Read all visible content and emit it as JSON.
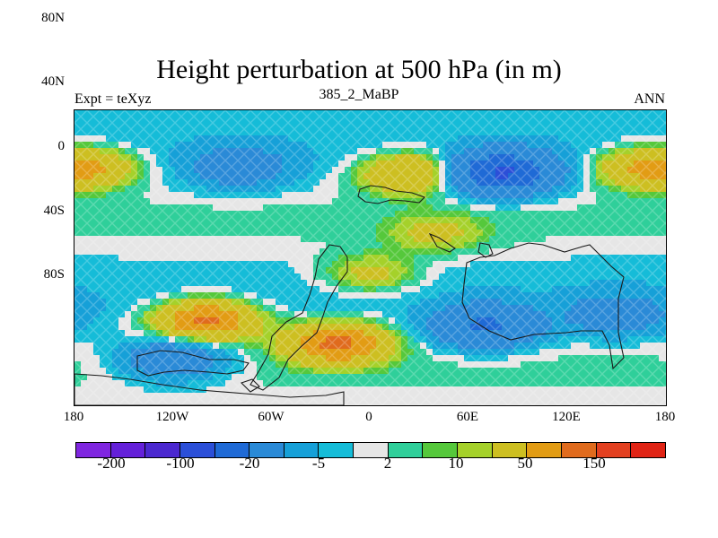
{
  "header": {
    "title": "Height perturbation at 500 hPa (in m)",
    "left_label": "Expt = teXyz",
    "center_label": "385_2_MaBP",
    "right_label": "ANN"
  },
  "axes": {
    "y_ticks": [
      "80N",
      "40N",
      "0",
      "40S",
      "80S"
    ],
    "x_ticks": [
      "180",
      "120W",
      "60W",
      "0",
      "60E",
      "120E",
      "180"
    ]
  },
  "colorbar": {
    "colors": [
      "#7f26e0",
      "#6420d9",
      "#4b28d0",
      "#2b4fd8",
      "#1f6ad6",
      "#2a8ad7",
      "#16a0d8",
      "#15bcd8",
      "#e6e6e6",
      "#2fcf9a",
      "#55c83b",
      "#a5d12a",
      "#cdbf21",
      "#e29c14",
      "#e06b1d",
      "#e34020",
      "#e02415"
    ],
    "labels": [
      "-200",
      "-100",
      "-20",
      "-5",
      "2",
      "10",
      "50",
      "150"
    ]
  },
  "chart_data": {
    "type": "heatmap",
    "title": "Height perturbation at 500 hPa (in m)",
    "subtitle": "385_2_MaBP",
    "xlabel": "",
    "ylabel": "",
    "xlim": [
      -180,
      180
    ],
    "ylim": [
      -90,
      90
    ],
    "x_tick_labels": [
      "180",
      "120W",
      "60W",
      "0",
      "60E",
      "120E",
      "180"
    ],
    "y_tick_labels": [
      "80N",
      "40N",
      "0",
      "40S",
      "80S"
    ],
    "levels": [
      -200,
      -100,
      -20,
      -5,
      2,
      10,
      50,
      150
    ],
    "base_value": -5,
    "features": [
      {
        "kind": "anomaly",
        "lon": 80,
        "lat": 52,
        "value": -100
      },
      {
        "kind": "anomaly",
        "lon": -80,
        "lat": 55,
        "value": -30
      },
      {
        "kind": "anomaly",
        "lon": 25,
        "lat": 52,
        "value": 40
      },
      {
        "kind": "anomaly",
        "lon": -170,
        "lat": 55,
        "value": 30
      },
      {
        "kind": "anomaly",
        "lon": 165,
        "lat": 55,
        "value": 30
      },
      {
        "kind": "anomaly",
        "lon": -100,
        "lat": -38,
        "value": 60
      },
      {
        "kind": "anomaly",
        "lon": -20,
        "lat": -52,
        "value": 60
      },
      {
        "kind": "anomaly",
        "lon": 0,
        "lat": -10,
        "value": 20
      },
      {
        "kind": "anomaly",
        "lon": 70,
        "lat": -42,
        "value": -60
      },
      {
        "kind": "anomaly",
        "lon": 150,
        "lat": -35,
        "value": -30
      },
      {
        "kind": "anomaly",
        "lon": -120,
        "lat": -62,
        "value": -40
      },
      {
        "kind": "anomaly",
        "lon": 40,
        "lat": 15,
        "value": 15
      }
    ]
  }
}
